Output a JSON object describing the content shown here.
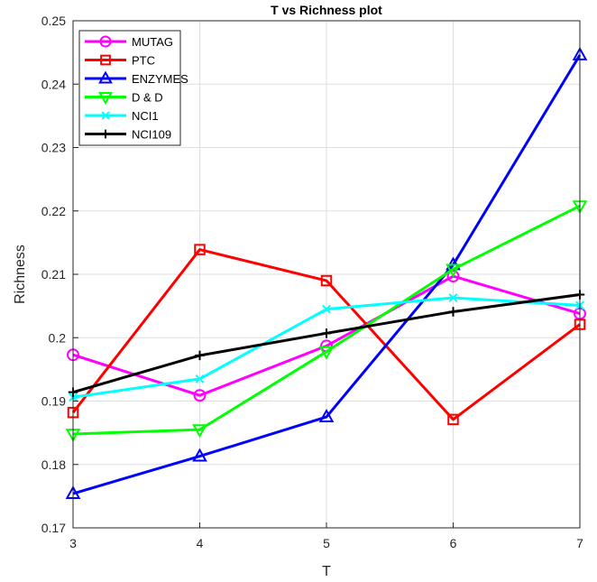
{
  "chart_data": {
    "type": "line",
    "title": "T vs Richness plot",
    "xlabel": "T",
    "ylabel": "Richness",
    "x": [
      3,
      4,
      5,
      6,
      7
    ],
    "xlim": [
      3,
      7
    ],
    "ylim": [
      0.17,
      0.25
    ],
    "xticks": [
      "3",
      "4",
      "5",
      "6",
      "7"
    ],
    "yticks": [
      "0.17",
      "0.18",
      "0.19",
      "0.2",
      "0.21",
      "0.22",
      "0.23",
      "0.24",
      "0.25"
    ],
    "grid": true,
    "legend_position": "top-left",
    "series": [
      {
        "name": "MUTAG",
        "color": "#ff00ff",
        "marker": "circle",
        "values": [
          0.1973,
          0.1909,
          0.1987,
          0.2097,
          0.2038
        ]
      },
      {
        "name": "PTC",
        "color": "#ff0000",
        "marker": "square",
        "values": [
          0.1882,
          0.2139,
          0.209,
          0.1871,
          0.2021
        ]
      },
      {
        "name": "ENZYMES",
        "color": "#0000ff",
        "marker": "triangle-up",
        "values": [
          0.1754,
          0.1813,
          0.1875,
          0.2115,
          0.2446
        ]
      },
      {
        "name": "D & D",
        "color": "#00ff00",
        "marker": "triangle-down",
        "values": [
          0.1848,
          0.1855,
          0.1978,
          0.2108,
          0.2208
        ]
      },
      {
        "name": "NCI1",
        "color": "#00ffff",
        "marker": "x",
        "values": [
          0.1906,
          0.1935,
          0.2045,
          0.2063,
          0.2051
        ]
      },
      {
        "name": "NCI109",
        "color": "#000000",
        "marker": "plus",
        "values": [
          0.1914,
          0.1972,
          0.2007,
          0.2041,
          0.2068
        ]
      }
    ]
  }
}
